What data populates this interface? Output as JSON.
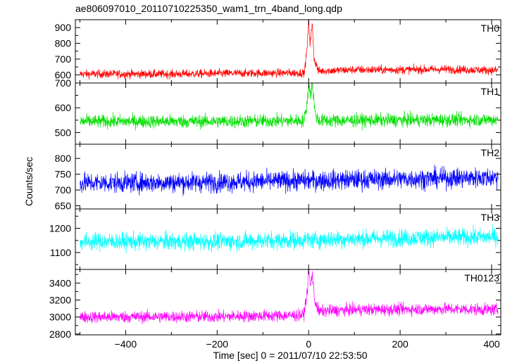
{
  "chart_data": {
    "type": "line",
    "title": "ae806097010_20110710225350_wam1_trn_4band_long.qdp",
    "xlabel": "Time [sec] 0 = 2011/07/10 22:53:50",
    "ylabel": "Counts/sec",
    "xlim": [
      -510,
      420
    ],
    "x_ticks": [
      -400,
      -200,
      0,
      200,
      400
    ],
    "x_tick_labels": [
      "−400",
      "−200",
      "0",
      "200",
      "400"
    ],
    "series": [
      {
        "name": "TH0",
        "color": "#ff0000",
        "ylim": [
          548,
          950
        ],
        "y_ticks": [
          600,
          700,
          800,
          900
        ],
        "y_tick_labels": [
          "600",
          "700",
          "800",
          "900"
        ],
        "y_ticks_unlabeled": [
          650,
          750,
          850
        ],
        "baseline": [
          [
            -510,
            605
          ],
          [
            -300,
            605
          ],
          [
            -150,
            610
          ],
          [
            -20,
            612
          ],
          [
            30,
            625
          ],
          [
            100,
            632
          ],
          [
            200,
            632
          ],
          [
            300,
            635
          ],
          [
            420,
            628
          ]
        ],
        "noise": 38,
        "burst": [
          [
            -10,
            600
          ],
          [
            -3,
            780
          ],
          [
            0,
            950
          ],
          [
            3,
            800
          ],
          [
            8,
            920
          ],
          [
            12,
            700
          ],
          [
            20,
            640
          ]
        ]
      },
      {
        "name": "TH1",
        "color": "#00e000",
        "ylim": [
          453,
          700
        ],
        "y_ticks": [
          500,
          600,
          700
        ],
        "y_tick_labels": [
          "500",
          "600",
          "700"
        ],
        "y_ticks_unlabeled": [
          550,
          650
        ],
        "baseline": [
          [
            -510,
            545
          ],
          [
            -200,
            545
          ],
          [
            0,
            548
          ],
          [
            200,
            550
          ],
          [
            420,
            552
          ]
        ],
        "noise": 38,
        "burst": [
          [
            -10,
            550
          ],
          [
            -3,
            620
          ],
          [
            0,
            700
          ],
          [
            4,
            650
          ],
          [
            8,
            700
          ],
          [
            14,
            580
          ],
          [
            20,
            555
          ]
        ]
      },
      {
        "name": "TH2",
        "color": "#0000ff",
        "ylim": [
          640,
          845
        ],
        "y_ticks": [
          650,
          700,
          750,
          800
        ],
        "y_tick_labels": [
          "650",
          "700",
          "750",
          "800"
        ],
        "y_ticks_unlabeled": [],
        "baseline": [
          [
            -510,
            722
          ],
          [
            -200,
            725
          ],
          [
            0,
            730
          ],
          [
            200,
            735
          ],
          [
            420,
            740
          ]
        ],
        "noise": 45,
        "burst": []
      },
      {
        "name": "TH3",
        "color": "#00ffff",
        "ylim": [
          1030,
          1280
        ],
        "y_ticks": [
          1100,
          1200
        ],
        "y_tick_labels": [
          "1100",
          "1200"
        ],
        "y_ticks_unlabeled": [
          1050,
          1150,
          1250
        ],
        "baseline": [
          [
            -510,
            1145
          ],
          [
            -200,
            1145
          ],
          [
            0,
            1152
          ],
          [
            200,
            1160
          ],
          [
            420,
            1165
          ]
        ],
        "noise": 52,
        "burst": []
      },
      {
        "name": "TH0123",
        "color": "#ff00ff",
        "ylim": [
          2790,
          3560
        ],
        "y_ticks": [
          2800,
          3000,
          3200,
          3400
        ],
        "y_tick_labels": [
          "2800",
          "3000",
          "3200",
          "3400"
        ],
        "y_ticks_unlabeled": [
          2900,
          3100,
          3300,
          3500
        ],
        "baseline": [
          [
            -510,
            3000
          ],
          [
            -200,
            3005
          ],
          [
            -20,
            3020
          ],
          [
            30,
            3070
          ],
          [
            100,
            3085
          ],
          [
            300,
            3095
          ],
          [
            420,
            3085
          ]
        ],
        "noise": 100,
        "burst": [
          [
            -10,
            3050
          ],
          [
            -3,
            3300
          ],
          [
            0,
            3560
          ],
          [
            4,
            3350
          ],
          [
            8,
            3520
          ],
          [
            13,
            3200
          ],
          [
            20,
            3100
          ]
        ]
      }
    ],
    "grid": false,
    "legend": "panel labels top-right"
  }
}
